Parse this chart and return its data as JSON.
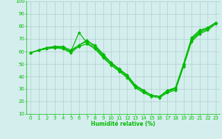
{
  "xlabel": "Humidité relative (%)",
  "x": [
    0,
    1,
    2,
    3,
    4,
    5,
    6,
    7,
    8,
    9,
    10,
    11,
    12,
    13,
    14,
    15,
    16,
    17,
    18,
    19,
    20,
    21,
    22,
    23
  ],
  "lines": [
    [
      59,
      61,
      63,
      64,
      64,
      61,
      65,
      69,
      64,
      57,
      51,
      46,
      41,
      33,
      29,
      25,
      24,
      28,
      31,
      50,
      71,
      77,
      79,
      83
    ],
    [
      59,
      61,
      63,
      63,
      63,
      60,
      65,
      68,
      65,
      58,
      51,
      46,
      41,
      33,
      29,
      25,
      24,
      29,
      31,
      50,
      70,
      76,
      79,
      83
    ],
    [
      59,
      61,
      63,
      64,
      63,
      60,
      75,
      67,
      63,
      56,
      50,
      45,
      40,
      32,
      28,
      25,
      24,
      28,
      30,
      49,
      69,
      75,
      78,
      83
    ],
    [
      59,
      61,
      62,
      63,
      62,
      59,
      64,
      66,
      62,
      55,
      49,
      44,
      39,
      31,
      27,
      24,
      23,
      27,
      29,
      48,
      68,
      74,
      77,
      82
    ]
  ],
  "line_color": "#00bb00",
  "bg_color": "#d4eeed",
  "grid_color": "#b0cccc",
  "ylim": [
    10,
    100
  ],
  "yticks": [
    10,
    20,
    30,
    40,
    50,
    60,
    70,
    80,
    90,
    100
  ],
  "xticks": [
    0,
    1,
    2,
    3,
    4,
    5,
    6,
    7,
    8,
    9,
    10,
    11,
    12,
    13,
    14,
    15,
    16,
    17,
    18,
    19,
    20,
    21,
    22,
    23
  ],
  "marker": "D",
  "markersize": 2.0,
  "linewidth": 0.9,
  "tick_fontsize": 5.0,
  "xlabel_fontsize": 5.5
}
